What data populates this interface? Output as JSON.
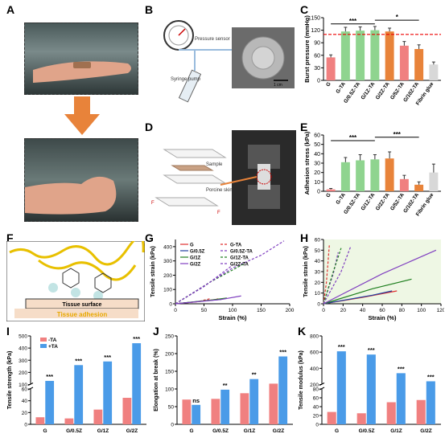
{
  "panel_labels": [
    "A",
    "B",
    "C",
    "D",
    "E",
    "F",
    "G",
    "H",
    "I",
    "J",
    "K"
  ],
  "colors": {
    "blue": "#4a9be8",
    "red": "#f08080",
    "orange": "#e8833a",
    "green": "#8fd48f",
    "cyan": "#6fd3d3",
    "purple": "#b39ddb"
  },
  "panel_b": {
    "pressure_label": "Pressure sensor",
    "syringe_label": "Syringe pump",
    "scale": "1 cm"
  },
  "panel_d": {
    "sample": "Sample",
    "skin": "Porcine skin",
    "force": "F"
  },
  "panel_f": {
    "surface": "Tissue surface",
    "adhesion": "Tissue adhesion"
  },
  "chart_data": [
    {
      "id": "C",
      "type": "bar",
      "ylabel": "Burst pressure (mmHg)",
      "ylim": [
        0,
        150
      ],
      "yticks": [
        0,
        30,
        60,
        90,
        120,
        150
      ],
      "categories": [
        "G",
        "G-TA",
        "G/0.5Z-TA",
        "G/1Z-TA",
        "G/2Z-TA",
        "G/5Z-TA",
        "G/10Z-TA",
        "Fibrin glue"
      ],
      "values": [
        55,
        117,
        119,
        120,
        117,
        83,
        75,
        38
      ],
      "errors": [
        6,
        10,
        9,
        9,
        8,
        10,
        10,
        6
      ],
      "reference_line": 110,
      "sig": [
        "***",
        "*"
      ]
    },
    {
      "id": "E",
      "type": "bar",
      "ylabel": "Adhesion stress (kPa)",
      "ylim": [
        0,
        60
      ],
      "yticks": [
        0,
        10,
        20,
        30,
        40,
        50,
        60
      ],
      "categories": [
        "G",
        "G-TA",
        "G/0.5Z-TA",
        "G/1Z-TA",
        "G/2Z-TA",
        "G/5Z-TA",
        "G/10Z-TA",
        "Fibrin glue"
      ],
      "values": [
        2,
        31,
        33,
        34,
        35,
        13,
        7,
        20
      ],
      "errors": [
        1,
        5,
        6,
        5,
        7,
        4,
        3,
        9
      ],
      "sig": [
        "***",
        "***"
      ]
    },
    {
      "id": "G",
      "type": "line",
      "xlabel": "Strain (%)",
      "ylabel": "Tensile strain (kPa)",
      "xlim": [
        0,
        200
      ],
      "ylim": [
        0,
        450
      ],
      "xticks": [
        0,
        50,
        100,
        150,
        200
      ],
      "yticks": [
        0,
        100,
        200,
        300,
        400
      ],
      "series": [
        {
          "name": "G",
          "points": [
            [
              0,
              0
            ],
            [
              40,
              15
            ],
            [
              70,
              30
            ],
            [
              75,
              35
            ]
          ]
        },
        {
          "name": "G-TA",
          "points": [
            [
              0,
              0
            ],
            [
              40,
              15
            ],
            [
              60,
              35
            ]
          ]
        },
        {
          "name": "G/0.5Z",
          "points": [
            [
              0,
              0
            ],
            [
              50,
              20
            ],
            [
              80,
              30
            ]
          ]
        },
        {
          "name": "G/0.5Z-TA",
          "points": [
            [
              0,
              0
            ],
            [
              50,
              120
            ],
            [
              100,
              270
            ]
          ]
        },
        {
          "name": "G/1Z",
          "points": [
            [
              0,
              0
            ],
            [
              60,
              25
            ],
            [
              90,
              40
            ]
          ]
        },
        {
          "name": "G/1Z-TA",
          "points": [
            [
              0,
              0
            ],
            [
              60,
              150
            ],
            [
              120,
              280
            ]
          ]
        },
        {
          "name": "G/2Z",
          "points": [
            [
              0,
              0
            ],
            [
              80,
              30
            ],
            [
              115,
              55
            ]
          ]
        },
        {
          "name": "G/2Z-TA",
          "points": [
            [
              0,
              0
            ],
            [
              100,
              250
            ],
            [
              150,
              340
            ],
            [
              190,
              440
            ]
          ]
        }
      ]
    },
    {
      "id": "H",
      "type": "line",
      "xlabel": "Strain (%)",
      "ylabel": "Tensile strain (kPa)",
      "xlim": [
        0,
        120
      ],
      "ylim": [
        0,
        60
      ],
      "xticks": [
        0,
        20,
        40,
        60,
        80,
        100,
        120
      ],
      "yticks": [
        0,
        10,
        20,
        30,
        40,
        50,
        60
      ],
      "series": [
        {
          "name": "G",
          "points": [
            [
              0,
              0
            ],
            [
              40,
              6
            ],
            [
              75,
              12
            ]
          ]
        },
        {
          "name": "G-TA",
          "points": [
            [
              0,
              0
            ],
            [
              3,
              20
            ],
            [
              6,
              55
            ]
          ]
        },
        {
          "name": "G/0.5Z",
          "points": [
            [
              0,
              0
            ],
            [
              50,
              8
            ],
            [
              70,
              12
            ]
          ]
        },
        {
          "name": "G/0.5Z-TA",
          "points": [
            [
              0,
              0
            ],
            [
              10,
              28
            ],
            [
              15,
              48
            ]
          ]
        },
        {
          "name": "G/1Z",
          "points": [
            [
              0,
              0
            ],
            [
              50,
              14
            ],
            [
              90,
              23
            ]
          ]
        },
        {
          "name": "G/1Z-TA",
          "points": [
            [
              0,
              0
            ],
            [
              10,
              30
            ],
            [
              18,
              52
            ]
          ]
        },
        {
          "name": "G/2Z",
          "points": [
            [
              0,
              0
            ],
            [
              60,
              28
            ],
            [
              115,
              50
            ]
          ]
        },
        {
          "name": "G/2Z-TA",
          "points": [
            [
              0,
              0
            ],
            [
              18,
              30
            ],
            [
              28,
              54
            ]
          ]
        }
      ]
    },
    {
      "id": "I",
      "type": "bar",
      "ylabel": "Tensile strength (kPa)",
      "legend": [
        "-TA",
        "+TA"
      ],
      "categories": [
        "G",
        "G/0.5Z",
        "G/1Z",
        "G/2Z"
      ],
      "minus_ta": [
        12,
        10,
        25,
        45
      ],
      "plus_ta": [
        130,
        260,
        290,
        440
      ],
      "sig": [
        "***",
        "***",
        "***",
        "***"
      ],
      "yticks_low": [
        0,
        20,
        40,
        60
      ],
      "yticks_high": [
        100,
        200,
        300,
        400,
        500
      ]
    },
    {
      "id": "J",
      "type": "bar",
      "ylabel": "Elongation at break (%)",
      "categories": [
        "G",
        "G/0.5Z",
        "G/1Z",
        "G/2Z"
      ],
      "minus_ta": [
        70,
        72,
        88,
        115
      ],
      "plus_ta": [
        55,
        98,
        128,
        192
      ],
      "sig": [
        "ns",
        "**",
        "**",
        "***"
      ],
      "ylim": [
        0,
        250
      ],
      "yticks": [
        0,
        50,
        100,
        150,
        200,
        250
      ]
    },
    {
      "id": "K",
      "type": "bar",
      "ylabel": "Tensile modulus (kPa)",
      "categories": [
        "G",
        "G/0.5Z",
        "G/1Z",
        "G/2Z"
      ],
      "minus_ta": [
        28,
        25,
        50,
        55
      ],
      "plus_ta": [
        610,
        570,
        340,
        240
      ],
      "sig": [
        "***",
        "***",
        "***",
        "***"
      ],
      "yticks_low": [
        0,
        20,
        40,
        60,
        80
      ],
      "yticks_high": [
        200,
        400,
        600,
        800
      ]
    }
  ]
}
